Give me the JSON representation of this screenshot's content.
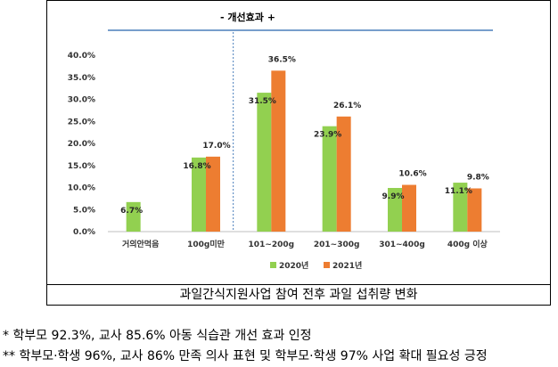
{
  "chart_data": {
    "type": "bar",
    "title": "",
    "xlabel": "",
    "ylabel": "",
    "categories": [
      "거의안먹음",
      "100g미만",
      "101~200g",
      "201~300g",
      "301~400g",
      "400g 이상"
    ],
    "series": [
      {
        "name": "2020년",
        "values": [
          6.7,
          16.8,
          31.5,
          23.9,
          9.9,
          11.1
        ],
        "labels": [
          "6.7%",
          "16.8%",
          "31.5%",
          "23.9%",
          "9.9%",
          "11.1%"
        ],
        "color": "#92D050"
      },
      {
        "name": "2021년",
        "values": [
          null,
          17.0,
          36.5,
          26.1,
          10.6,
          9.8
        ],
        "labels": [
          "",
          "17.0%",
          "36.5%",
          "26.1%",
          "10.6%",
          "9.8%"
        ],
        "color": "#ED7D31"
      }
    ],
    "ylim": [
      0,
      40
    ],
    "yticks": [
      "0.0%",
      "5.0%",
      "10.0%",
      "15.0%",
      "20.0%",
      "25.0%",
      "30.0%",
      "35.0%",
      "40.0%"
    ],
    "grid": false,
    "legend": "bottom",
    "annotation": {
      "text": "-        개선효과        +"
    },
    "divider_after_category": 1
  },
  "caption": "과일간식지원사업 참여 전후 과일 섭취량 변화",
  "notes": [
    "* 학부모 92.3%, 교사 85.6% 아동 식습관 개선 효과 인정",
    "** 학부모·학생 96%, 교사 86% 만족 의사 표현 및 학부모·학생 97% 사업 확대 필요성 긍정"
  ]
}
